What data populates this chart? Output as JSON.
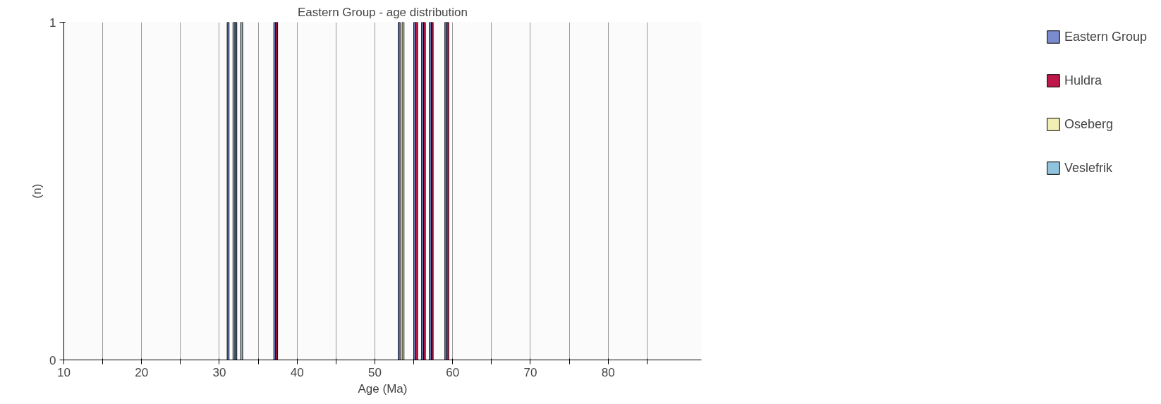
{
  "chart_data": {
    "type": "bar",
    "title": "Eastern Group - age distribution",
    "xlabel": "Age (Ma)",
    "ylabel": "(n)",
    "series": [
      {
        "name": "Eastern Group",
        "color": "#7b8cce",
        "x": [
          31.5,
          32.5,
          37.5,
          53.5,
          55.5,
          56.5,
          57.5,
          59.5
        ],
        "values": [
          1,
          1,
          1,
          1,
          1,
          1,
          1,
          1
        ]
      },
      {
        "name": "Huldra",
        "color": "#c0174a",
        "x": [
          37.5,
          55.5,
          56.5,
          57.5,
          59.5
        ],
        "values": [
          1,
          1,
          1,
          1,
          1
        ]
      },
      {
        "name": "Oseberg",
        "color": "#f2efb4",
        "x": [
          53.5
        ],
        "values": [
          1
        ]
      },
      {
        "name": "Veslefrik",
        "color": "#8fc4dc",
        "x": [
          31.5,
          32.5
        ],
        "values": [
          1,
          1
        ]
      }
    ],
    "xlim": [
      10,
      92
    ],
    "xticks": [
      10,
      {
        "value": 15,
        "label": null
      },
      20,
      {
        "value": 25,
        "label": null
      },
      30,
      {
        "value": 35,
        "label": null
      },
      40,
      {
        "value": 45,
        "label": null
      },
      50,
      {
        "value": 55,
        "label": null
      },
      60,
      {
        "value": 65,
        "label": null
      },
      70,
      {
        "value": 75,
        "label": null
      },
      80,
      {
        "value": 85,
        "label": null
      }
    ],
    "ylim": [
      0,
      1
    ],
    "yticks": [
      0,
      1
    ],
    "grid": "x",
    "legend": "right"
  }
}
